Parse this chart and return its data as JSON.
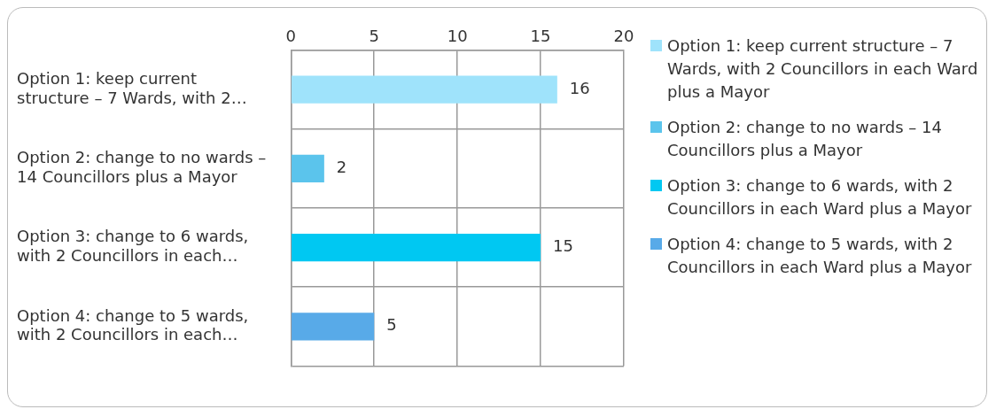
{
  "chart_data": {
    "type": "bar",
    "orientation": "horizontal",
    "categories": [
      "Option 1: keep current structure – 7 Wards, with 2…",
      "Option 2: change to no wards – 14 Councillors plus a Mayor",
      "Option 3: change to 6 wards, with 2 Councillors in each…",
      "Option 4: change to 5 wards, with 2 Councillors in each…"
    ],
    "series": [
      {
        "name": "Option 1: keep current structure – 7 Wards, with 2 Councillors in each Ward plus a Mayor",
        "color": "#9fe3fb",
        "values": [
          16,
          null,
          null,
          null
        ]
      },
      {
        "name": "Option 2: change to no wards – 14 Councillors plus a Mayor",
        "color": "#5bc4ec",
        "values": [
          null,
          2,
          null,
          null
        ]
      },
      {
        "name": "Option 3: change to 6 wards, with 2 Councillors in each Ward plus a Mayor",
        "color": "#00c8f2",
        "values": [
          null,
          null,
          15,
          null
        ]
      },
      {
        "name": "Option 4: change to 5 wards, with 2 Councillors in each Ward plus a Mayor",
        "color": "#58aae8",
        "values": [
          null,
          null,
          null,
          5
        ]
      }
    ],
    "xlim": [
      0,
      20
    ],
    "xticks": [
      0,
      5,
      10,
      15,
      20
    ],
    "grid": true,
    "legend": "right",
    "data_labels": true
  }
}
